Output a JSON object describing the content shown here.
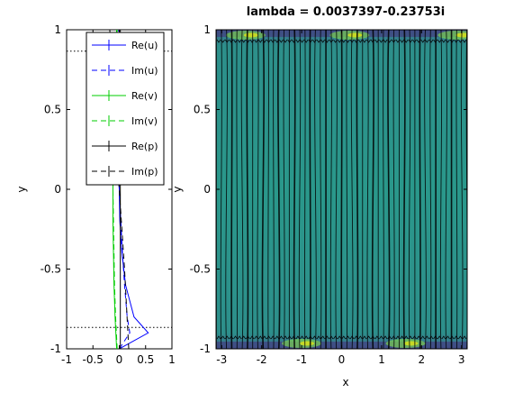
{
  "chart_data": [
    {
      "type": "line",
      "xlabel": "",
      "ylabel": "y",
      "xlim": [
        -1,
        1
      ],
      "ylim": [
        -1,
        1
      ],
      "xticks": [
        "-1",
        "-0.5",
        "0",
        "0.5",
        "1"
      ],
      "yticks": [
        "-1",
        "-0.5",
        "0",
        "0.5",
        "1"
      ],
      "hlines": [
        0.866,
        -0.866
      ],
      "legend_position": "top-right",
      "series": [
        {
          "name": "Re(u)",
          "color": "#0000ff",
          "dash": "solid",
          "y": [
            -1,
            -0.9,
            -0.8,
            -0.6,
            -0.4,
            -0.2,
            0,
            0.2,
            0.4,
            0.6,
            0.8,
            0.9,
            1
          ],
          "x": [
            0,
            0.55,
            0.28,
            0.12,
            0.05,
            0.01,
            0,
            -0.02,
            -0.05,
            -0.08,
            -0.04,
            -0.01,
            0
          ]
        },
        {
          "name": "Im(u)",
          "color": "#0000ff",
          "dash": "dashed",
          "y": [
            -1,
            -0.9,
            -0.8,
            -0.6,
            -0.4,
            -0.2,
            0,
            0.2,
            0.4,
            0.6,
            0.8,
            0.9,
            1
          ],
          "x": [
            0,
            0.2,
            0.15,
            0.1,
            0.06,
            0.03,
            0,
            -0.03,
            -0.06,
            -0.1,
            -0.15,
            -0.2,
            0
          ]
        },
        {
          "name": "Re(v)",
          "color": "#00cc00",
          "dash": "solid",
          "y": [
            -1,
            -0.8,
            -0.6,
            -0.4,
            -0.2,
            0,
            0.2,
            0.4,
            0.6,
            0.8,
            1
          ],
          "x": [
            -0.05,
            -0.08,
            -0.1,
            -0.11,
            -0.12,
            -0.12,
            -0.12,
            -0.11,
            -0.1,
            -0.08,
            -0.05
          ]
        },
        {
          "name": "Im(v)",
          "color": "#00cc00",
          "dash": "dashed",
          "y": [
            -1,
            -0.8,
            -0.6,
            -0.4,
            -0.2,
            0,
            0.2,
            0.4,
            0.6,
            0.8,
            1
          ],
          "x": [
            -0.04,
            -0.07,
            -0.09,
            -0.1,
            -0.11,
            -0.12,
            -0.11,
            -0.1,
            -0.09,
            -0.07,
            -0.04
          ]
        },
        {
          "name": "Re(p)",
          "color": "#000000",
          "dash": "solid",
          "y": [
            -1,
            1
          ],
          "x": [
            0.02,
            0.02
          ]
        },
        {
          "name": "Im(p)",
          "color": "#000000",
          "dash": "dashed",
          "y": [
            -1,
            -0.5,
            0,
            0.5,
            1
          ],
          "x": [
            0.18,
            0.1,
            0,
            -0.1,
            -0.18
          ]
        }
      ]
    },
    {
      "type": "heatmap",
      "title": "lambda = 0.0037397-0.23753i",
      "xlabel": "x",
      "ylabel": "y",
      "xlim": [
        -3.1416,
        3.1416
      ],
      "ylim": [
        -1,
        1
      ],
      "xticks": [
        "-3",
        "-2",
        "-1",
        "0",
        "1",
        "2",
        "3"
      ],
      "yticks": [
        "-1",
        "-0.5",
        "0",
        "0.5",
        "1"
      ],
      "grid": false,
      "colormap": [
        "#2f8c8a",
        "#24998a",
        "#3a5e8c",
        "#46327e",
        "#7ad151",
        "#dde318"
      ]
    }
  ]
}
